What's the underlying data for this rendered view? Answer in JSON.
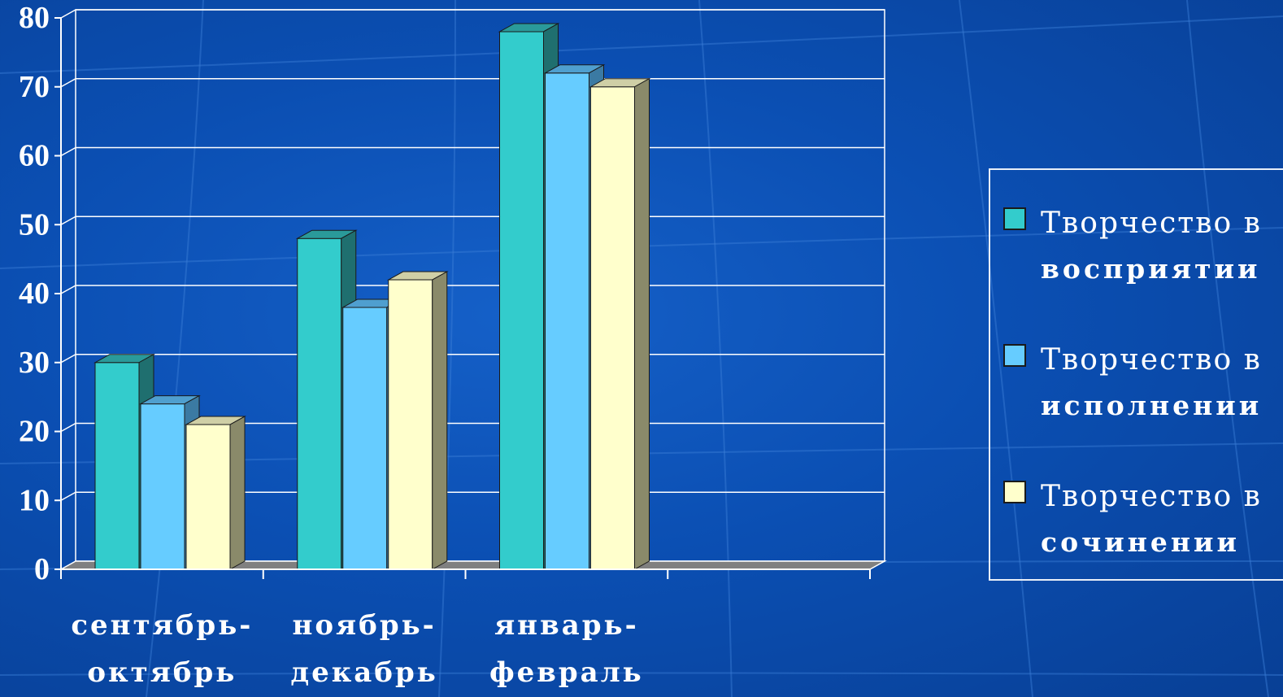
{
  "chart_data": {
    "type": "bar",
    "style": "3d-clustered-column",
    "categories": [
      "сентябрь-октябрь",
      "ноябрь-декабрь",
      "январь-февраль",
      ""
    ],
    "category_lines": [
      [
        "сентябрь-",
        "октябрь"
      ],
      [
        "ноябрь-",
        "декабрь"
      ],
      [
        "январь-",
        "февраль"
      ],
      [
        "",
        ""
      ]
    ],
    "series": [
      {
        "name": "Творчество в восприятии",
        "name_lines": [
          "Творчество в",
          "восприятии"
        ],
        "color": "#33cccc",
        "top_color": "#2a9a9a",
        "side_color": "#1f6f6f",
        "values": [
          30,
          48,
          78,
          null
        ]
      },
      {
        "name": "Творчество в исполнении",
        "name_lines": [
          "Творчество в",
          "исполнении"
        ],
        "color": "#66ccff",
        "top_color": "#4f9fcf",
        "side_color": "#3b7aa3",
        "values": [
          24,
          38,
          72,
          null
        ]
      },
      {
        "name": "Творчество в сочинении",
        "name_lines": [
          "Творчество в",
          "сочинении"
        ],
        "color": "#ffffcc",
        "top_color": "#cfcfa6",
        "side_color": "#8a8a6a",
        "values": [
          21,
          42,
          70,
          null
        ]
      }
    ],
    "ylim": [
      0,
      80
    ],
    "yticks": [
      "0",
      "10",
      "20",
      "30",
      "40",
      "50",
      "60",
      "70",
      "80"
    ],
    "grid": true,
    "legend_position": "right",
    "title": "",
    "xlabel": "",
    "ylabel": ""
  },
  "colors": {
    "background": "#0b4fb3",
    "grid": "#ffffff",
    "floor": "#808080",
    "text": "#ffffff"
  }
}
